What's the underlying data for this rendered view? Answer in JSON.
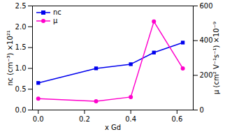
{
  "chart_data": {
    "type": "line",
    "xlabel": "x Gd",
    "ylabel": "nc (cm⁻³) ×10²¹",
    "y2label": "μ (cm² V⁻¹s⁻¹) ×10⁻⁹",
    "x": [
      0.0,
      0.25,
      0.4,
      0.5,
      0.625
    ],
    "xlim": [
      -0.025,
      0.67
    ],
    "xticks": [
      {
        "value": 0.0,
        "label": "0.0"
      },
      0.2,
      0.4,
      0.6
    ],
    "ylim": [
      0,
      2.5
    ],
    "yticks": [
      {
        "value": 0.0,
        "label": "0.0"
      },
      0.5,
      {
        "value": 1.0,
        "label": "1.0"
      },
      1.5,
      {
        "value": 2.0,
        "label": "2.0"
      },
      2.5
    ],
    "y2lim": [
      0,
      600
    ],
    "y2ticks": [
      0,
      200,
      400,
      600
    ],
    "legend": "upper left",
    "series": [
      {
        "name": "nc",
        "color": "#0000ee",
        "marker": "square",
        "values": [
          0.65,
          1.0,
          1.1,
          1.38,
          1.62
        ]
      },
      {
        "name": "μ",
        "color": "#ff00cc",
        "marker": "circle",
        "axis": "y2",
        "values": [
          65,
          50,
          75,
          510,
          240
        ]
      }
    ]
  }
}
